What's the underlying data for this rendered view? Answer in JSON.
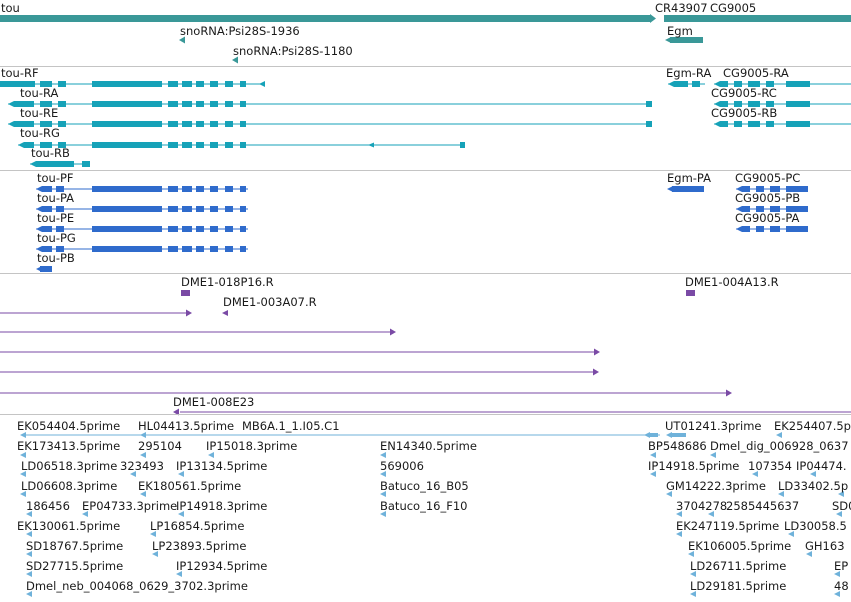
{
  "colors": {
    "gene": "#3a9898",
    "transcript": "#16a2b8",
    "protein": "#2f6bcc",
    "clone": "#7a4aa5",
    "est": "#6fb2da",
    "separator": "#c4c4c4"
  },
  "tracks": {
    "genes": {
      "labels": [
        "tou",
        "CR43907",
        "CG9005",
        "snoRNA:Psi28S-1936",
        "snoRNA:Psi28S-1180",
        "Egm"
      ]
    },
    "transcripts": {
      "labels": [
        "tou-RF",
        "tou-RA",
        "tou-RE",
        "tou-RG",
        "tou-RB",
        "Egm-RA",
        "CG9005-RA",
        "CG9005-RC",
        "CG9005-RB"
      ]
    },
    "proteins": {
      "labels": [
        "tou-PF",
        "tou-PA",
        "tou-PE",
        "tou-PG",
        "tou-PB",
        "Egm-PA",
        "CG9005-PC",
        "CG9005-PB",
        "CG9005-PA"
      ]
    },
    "clones": {
      "labels": [
        "DME1-018P16.R",
        "DME1-003A07.R",
        "DME1-004A13.R",
        "DME1-008E23"
      ]
    },
    "ests": {
      "labels": [
        "EK054404.5prime",
        "HL04413.5prime",
        "MB6A.1_1.I05.C1",
        "UT01241.3prime",
        "EK254407.5p",
        "EK173413.5prime",
        "295104",
        "IP15018.3prime",
        "EN14340.5prime",
        "BP548686",
        "Dmel_dig_006928_0637",
        "LD06518.3prime",
        "323493",
        "IP13134.5prime",
        "569006",
        "IP14918.5prime",
        "107354",
        "IP04474.",
        "LD06608.3prime",
        "EK180561.5prime",
        "Batuco_16_B05",
        "GM14222.3prime",
        "LD33402.5p",
        "186456",
        "EP04733.3prime",
        "IP14918.3prime",
        "Batuco_16_F10",
        "3704278",
        "2585445637",
        "SD0",
        "EK130061.5prime",
        "LP16854.5prime",
        "EK247119.5prime",
        "LD30058.5",
        "SD18767.5prime",
        "LP23893.5prime",
        "EK106005.5prime",
        "GH163",
        "SD27715.5prime",
        "IP12934.5prime",
        "LD26711.5prime",
        "EP",
        "Dmel_neb_004068_0629_3702.3prime",
        "LD29181.5prime",
        "48"
      ]
    }
  }
}
